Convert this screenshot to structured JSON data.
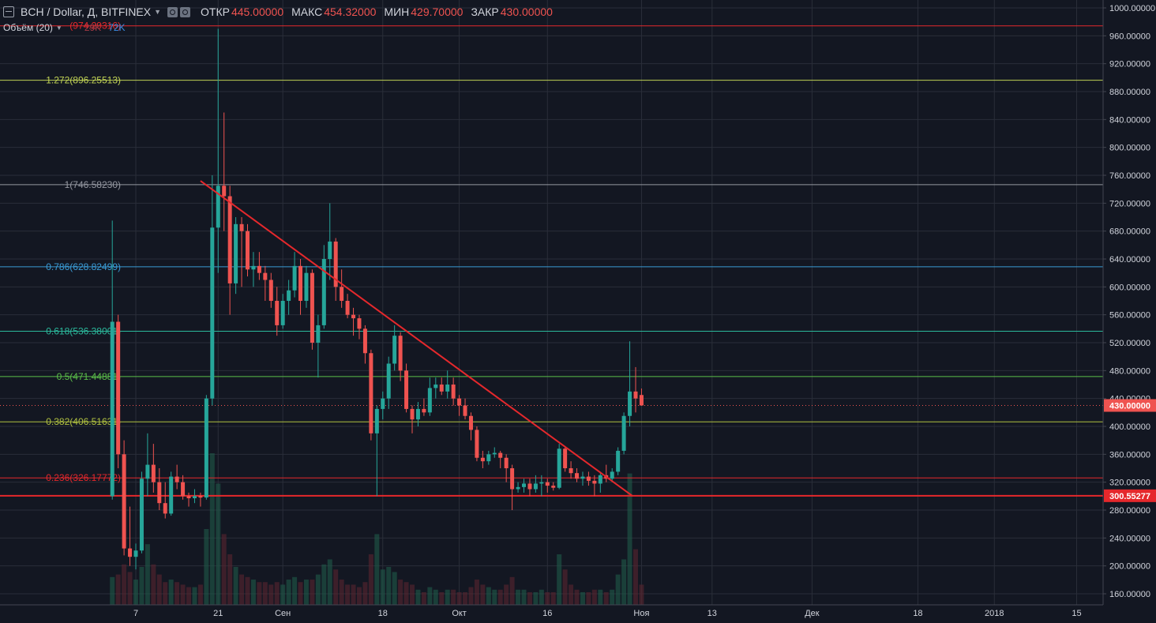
{
  "header": {
    "symbol": "BCH / Dollar, Д, BITFINEX",
    "open_label": "ОТКР",
    "open_value": "445.00000",
    "high_label": "МАКС",
    "high_value": "454.32000",
    "low_label": "МИН",
    "low_value": "429.70000",
    "close_label": "ЗАКР",
    "close_value": "430.00000",
    "icons": [
      "menu-icon",
      "chevron-down-icon",
      "settings-icon",
      "compare-icon"
    ]
  },
  "volume_legend": {
    "label": "Объём (20)",
    "down_value": "29K",
    "up_value": "72K"
  },
  "colors": {
    "background": "#131722",
    "grid": "#2a2e39",
    "up": "#26a69a",
    "down": "#ef5350",
    "trendline": "#e5282c",
    "support": "#e5282c",
    "axis_text": "#d1d4dc"
  },
  "chart_data": {
    "type": "candlestick",
    "ylim": [
      140,
      1010
    ],
    "y_ticks": [
      160,
      200,
      240,
      280,
      320,
      360,
      400,
      440,
      480,
      520,
      560,
      600,
      640,
      680,
      720,
      760,
      800,
      840,
      880,
      920,
      960,
      1000
    ],
    "y_tick_labels": [
      "160.00000",
      "200.00000",
      "240.00000",
      "280.00000",
      "320.00000",
      "360.00000",
      "400.00000",
      "440.00000",
      "480.00000",
      "520.00000",
      "560.00000",
      "600.00000",
      "640.00000",
      "680.00000",
      "720.00000",
      "760.00000",
      "800.00000",
      "840.00000",
      "880.00000",
      "920.00000",
      "960.00000",
      "1000.00000"
    ],
    "x_ticks": [
      {
        "label": "7",
        "day": 7
      },
      {
        "label": "21",
        "day": 21
      },
      {
        "label": "Сен",
        "day": 32
      },
      {
        "label": "18",
        "day": 49
      },
      {
        "label": "Окт",
        "day": 62
      },
      {
        "label": "16",
        "day": 77
      },
      {
        "label": "Ноя",
        "day": 93
      },
      {
        "label": "13",
        "day": 105
      },
      {
        "label": "Дек",
        "day": 122
      },
      {
        "label": "18",
        "day": 140
      },
      {
        "label": "2018",
        "day": 153
      },
      {
        "label": "15",
        "day": 167
      }
    ],
    "fib_levels": [
      {
        "label": "1.272(896.25513)",
        "value": 896.25513,
        "color": "#c0d255"
      },
      {
        "label": "1(746.58230)",
        "value": 746.5823,
        "color": "#9598a1"
      },
      {
        "label": "0.786(628.82499)",
        "value": 628.82499,
        "color": "#3a9bd5"
      },
      {
        "label": "0.618(536.38001)",
        "value": 536.38001,
        "color": "#2bb89b"
      },
      {
        "label": "0.5(471.44881)",
        "value": 471.44881,
        "color": "#5cbf4a"
      },
      {
        "label": "0.382(406.51631)",
        "value": 406.51631,
        "color": "#b0c040"
      },
      {
        "label": "0.236(326.17772)",
        "value": 326.17772,
        "color": "#e5282c"
      },
      {
        "label": "(974.29316)",
        "value": 974.29316,
        "color": "#e5282c"
      }
    ],
    "support_line": {
      "value": 300.55277,
      "label": "300.55277"
    },
    "last_price": {
      "value": 430.0,
      "label": "430.00000"
    },
    "trendline": {
      "from": {
        "day": 18,
        "price": 752
      },
      "to": {
        "day": 91.5,
        "price": 300
      }
    },
    "candles": [
      {
        "day": 3,
        "o": 300,
        "h": 695,
        "l": 295,
        "c": 550,
        "v": 11
      },
      {
        "day": 4,
        "o": 550,
        "h": 560,
        "l": 340,
        "c": 360,
        "v": 12
      },
      {
        "day": 5,
        "o": 360,
        "h": 380,
        "l": 215,
        "c": 225,
        "v": 16
      },
      {
        "day": 6,
        "o": 225,
        "h": 285,
        "l": 200,
        "c": 213,
        "v": 13
      },
      {
        "day": 7,
        "o": 213,
        "h": 232,
        "l": 195,
        "c": 222,
        "v": 10
      },
      {
        "day": 8,
        "o": 222,
        "h": 335,
        "l": 218,
        "c": 325,
        "v": 15
      },
      {
        "day": 9,
        "o": 325,
        "h": 390,
        "l": 300,
        "c": 345,
        "v": 24
      },
      {
        "day": 10,
        "o": 345,
        "h": 375,
        "l": 305,
        "c": 320,
        "v": 16
      },
      {
        "day": 11,
        "o": 320,
        "h": 340,
        "l": 280,
        "c": 290,
        "v": 12
      },
      {
        "day": 12,
        "o": 290,
        "h": 320,
        "l": 268,
        "c": 275,
        "v": 9
      },
      {
        "day": 13,
        "o": 275,
        "h": 335,
        "l": 272,
        "c": 328,
        "v": 10
      },
      {
        "day": 14,
        "o": 328,
        "h": 345,
        "l": 310,
        "c": 320,
        "v": 9
      },
      {
        "day": 15,
        "o": 320,
        "h": 330,
        "l": 295,
        "c": 300,
        "v": 8
      },
      {
        "day": 16,
        "o": 300,
        "h": 305,
        "l": 285,
        "c": 297,
        "v": 7
      },
      {
        "day": 17,
        "o": 297,
        "h": 310,
        "l": 290,
        "c": 300,
        "v": 7
      },
      {
        "day": 18,
        "o": 300,
        "h": 305,
        "l": 285,
        "c": 298,
        "v": 8
      },
      {
        "day": 19,
        "o": 298,
        "h": 445,
        "l": 295,
        "c": 440,
        "v": 30
      },
      {
        "day": 20,
        "o": 440,
        "h": 760,
        "l": 430,
        "c": 685,
        "v": 60
      },
      {
        "day": 21,
        "o": 685,
        "h": 970,
        "l": 620,
        "c": 745,
        "v": 48
      },
      {
        "day": 22,
        "o": 745,
        "h": 850,
        "l": 680,
        "c": 730,
        "v": 28
      },
      {
        "day": 23,
        "o": 730,
        "h": 745,
        "l": 560,
        "c": 605,
        "v": 20
      },
      {
        "day": 24,
        "o": 605,
        "h": 700,
        "l": 590,
        "c": 690,
        "v": 15
      },
      {
        "day": 25,
        "o": 690,
        "h": 700,
        "l": 600,
        "c": 680,
        "v": 12
      },
      {
        "day": 26,
        "o": 680,
        "h": 690,
        "l": 615,
        "c": 625,
        "v": 11
      },
      {
        "day": 27,
        "o": 625,
        "h": 650,
        "l": 600,
        "c": 630,
        "v": 10
      },
      {
        "day": 28,
        "o": 630,
        "h": 650,
        "l": 610,
        "c": 620,
        "v": 9
      },
      {
        "day": 29,
        "o": 620,
        "h": 630,
        "l": 580,
        "c": 610,
        "v": 9
      },
      {
        "day": 30,
        "o": 610,
        "h": 620,
        "l": 570,
        "c": 580,
        "v": 8
      },
      {
        "day": 31,
        "o": 580,
        "h": 600,
        "l": 530,
        "c": 545,
        "v": 9
      },
      {
        "day": 32,
        "o": 545,
        "h": 590,
        "l": 540,
        "c": 580,
        "v": 8
      },
      {
        "day": 33,
        "o": 580,
        "h": 610,
        "l": 560,
        "c": 595,
        "v": 10
      },
      {
        "day": 34,
        "o": 595,
        "h": 650,
        "l": 585,
        "c": 630,
        "v": 11
      },
      {
        "day": 35,
        "o": 630,
        "h": 640,
        "l": 560,
        "c": 580,
        "v": 9
      },
      {
        "day": 36,
        "o": 580,
        "h": 630,
        "l": 570,
        "c": 620,
        "v": 10
      },
      {
        "day": 37,
        "o": 620,
        "h": 625,
        "l": 510,
        "c": 520,
        "v": 10
      },
      {
        "day": 38,
        "o": 520,
        "h": 560,
        "l": 470,
        "c": 545,
        "v": 12
      },
      {
        "day": 39,
        "o": 545,
        "h": 660,
        "l": 540,
        "c": 640,
        "v": 16
      },
      {
        "day": 40,
        "o": 640,
        "h": 720,
        "l": 610,
        "c": 665,
        "v": 18
      },
      {
        "day": 41,
        "o": 665,
        "h": 670,
        "l": 580,
        "c": 600,
        "v": 14
      },
      {
        "day": 42,
        "o": 600,
        "h": 625,
        "l": 570,
        "c": 580,
        "v": 10
      },
      {
        "day": 43,
        "o": 580,
        "h": 590,
        "l": 555,
        "c": 560,
        "v": 8
      },
      {
        "day": 44,
        "o": 560,
        "h": 570,
        "l": 530,
        "c": 555,
        "v": 8
      },
      {
        "day": 45,
        "o": 555,
        "h": 560,
        "l": 525,
        "c": 540,
        "v": 7
      },
      {
        "day": 46,
        "o": 540,
        "h": 545,
        "l": 490,
        "c": 505,
        "v": 9
      },
      {
        "day": 47,
        "o": 505,
        "h": 510,
        "l": 380,
        "c": 390,
        "v": 20
      },
      {
        "day": 48,
        "o": 390,
        "h": 430,
        "l": 300,
        "c": 425,
        "v": 28
      },
      {
        "day": 49,
        "o": 425,
        "h": 450,
        "l": 410,
        "c": 440,
        "v": 14
      },
      {
        "day": 50,
        "o": 440,
        "h": 500,
        "l": 425,
        "c": 490,
        "v": 15
      },
      {
        "day": 51,
        "o": 490,
        "h": 545,
        "l": 480,
        "c": 530,
        "v": 13
      },
      {
        "day": 52,
        "o": 530,
        "h": 535,
        "l": 465,
        "c": 480,
        "v": 10
      },
      {
        "day": 53,
        "o": 480,
        "h": 490,
        "l": 420,
        "c": 425,
        "v": 9
      },
      {
        "day": 54,
        "o": 425,
        "h": 430,
        "l": 390,
        "c": 410,
        "v": 8
      },
      {
        "day": 55,
        "o": 410,
        "h": 435,
        "l": 400,
        "c": 425,
        "v": 6
      },
      {
        "day": 56,
        "o": 425,
        "h": 440,
        "l": 415,
        "c": 420,
        "v": 5
      },
      {
        "day": 57,
        "o": 420,
        "h": 470,
        "l": 415,
        "c": 455,
        "v": 7
      },
      {
        "day": 58,
        "o": 455,
        "h": 470,
        "l": 440,
        "c": 460,
        "v": 6
      },
      {
        "day": 59,
        "o": 460,
        "h": 470,
        "l": 445,
        "c": 450,
        "v": 5
      },
      {
        "day": 60,
        "o": 450,
        "h": 480,
        "l": 440,
        "c": 460,
        "v": 6
      },
      {
        "day": 61,
        "o": 460,
        "h": 470,
        "l": 430,
        "c": 440,
        "v": 6
      },
      {
        "day": 62,
        "o": 440,
        "h": 445,
        "l": 415,
        "c": 430,
        "v": 5
      },
      {
        "day": 63,
        "o": 430,
        "h": 440,
        "l": 410,
        "c": 415,
        "v": 5
      },
      {
        "day": 64,
        "o": 415,
        "h": 420,
        "l": 380,
        "c": 395,
        "v": 7
      },
      {
        "day": 65,
        "o": 395,
        "h": 400,
        "l": 350,
        "c": 355,
        "v": 10
      },
      {
        "day": 66,
        "o": 355,
        "h": 365,
        "l": 340,
        "c": 350,
        "v": 8
      },
      {
        "day": 67,
        "o": 350,
        "h": 365,
        "l": 345,
        "c": 360,
        "v": 7
      },
      {
        "day": 68,
        "o": 360,
        "h": 370,
        "l": 355,
        "c": 362,
        "v": 6
      },
      {
        "day": 69,
        "o": 362,
        "h": 365,
        "l": 340,
        "c": 355,
        "v": 6
      },
      {
        "day": 70,
        "o": 355,
        "h": 360,
        "l": 320,
        "c": 340,
        "v": 8
      },
      {
        "day": 71,
        "o": 340,
        "h": 345,
        "l": 280,
        "c": 310,
        "v": 11
      },
      {
        "day": 72,
        "o": 310,
        "h": 320,
        "l": 305,
        "c": 313,
        "v": 6
      },
      {
        "day": 73,
        "o": 313,
        "h": 325,
        "l": 305,
        "c": 318,
        "v": 6
      },
      {
        "day": 74,
        "o": 318,
        "h": 325,
        "l": 300,
        "c": 310,
        "v": 5
      },
      {
        "day": 75,
        "o": 310,
        "h": 330,
        "l": 305,
        "c": 318,
        "v": 5
      },
      {
        "day": 76,
        "o": 318,
        "h": 330,
        "l": 300,
        "c": 320,
        "v": 6
      },
      {
        "day": 77,
        "o": 320,
        "h": 325,
        "l": 305,
        "c": 315,
        "v": 5
      },
      {
        "day": 78,
        "o": 315,
        "h": 320,
        "l": 308,
        "c": 312,
        "v": 5
      },
      {
        "day": 79,
        "o": 312,
        "h": 375,
        "l": 310,
        "c": 368,
        "v": 20
      },
      {
        "day": 80,
        "o": 368,
        "h": 370,
        "l": 335,
        "c": 340,
        "v": 14
      },
      {
        "day": 81,
        "o": 340,
        "h": 350,
        "l": 325,
        "c": 333,
        "v": 8
      },
      {
        "day": 82,
        "o": 333,
        "h": 340,
        "l": 320,
        "c": 325,
        "v": 6
      },
      {
        "day": 83,
        "o": 325,
        "h": 335,
        "l": 315,
        "c": 328,
        "v": 5
      },
      {
        "day": 84,
        "o": 328,
        "h": 335,
        "l": 315,
        "c": 322,
        "v": 5
      },
      {
        "day": 85,
        "o": 322,
        "h": 330,
        "l": 300,
        "c": 318,
        "v": 6
      },
      {
        "day": 86,
        "o": 318,
        "h": 335,
        "l": 305,
        "c": 330,
        "v": 6
      },
      {
        "day": 87,
        "o": 330,
        "h": 345,
        "l": 320,
        "c": 325,
        "v": 5
      },
      {
        "day": 88,
        "o": 325,
        "h": 340,
        "l": 320,
        "c": 335,
        "v": 6
      },
      {
        "day": 89,
        "o": 335,
        "h": 370,
        "l": 330,
        "c": 365,
        "v": 12
      },
      {
        "day": 90,
        "o": 365,
        "h": 420,
        "l": 360,
        "c": 415,
        "v": 18
      },
      {
        "day": 91,
        "o": 415,
        "h": 522,
        "l": 400,
        "c": 450,
        "v": 52
      },
      {
        "day": 92,
        "o": 450,
        "h": 485,
        "l": 420,
        "c": 440,
        "v": 22
      },
      {
        "day": 93,
        "o": 445,
        "h": 454.32,
        "l": 429.7,
        "c": 430,
        "v": 8
      }
    ],
    "grid": true
  }
}
